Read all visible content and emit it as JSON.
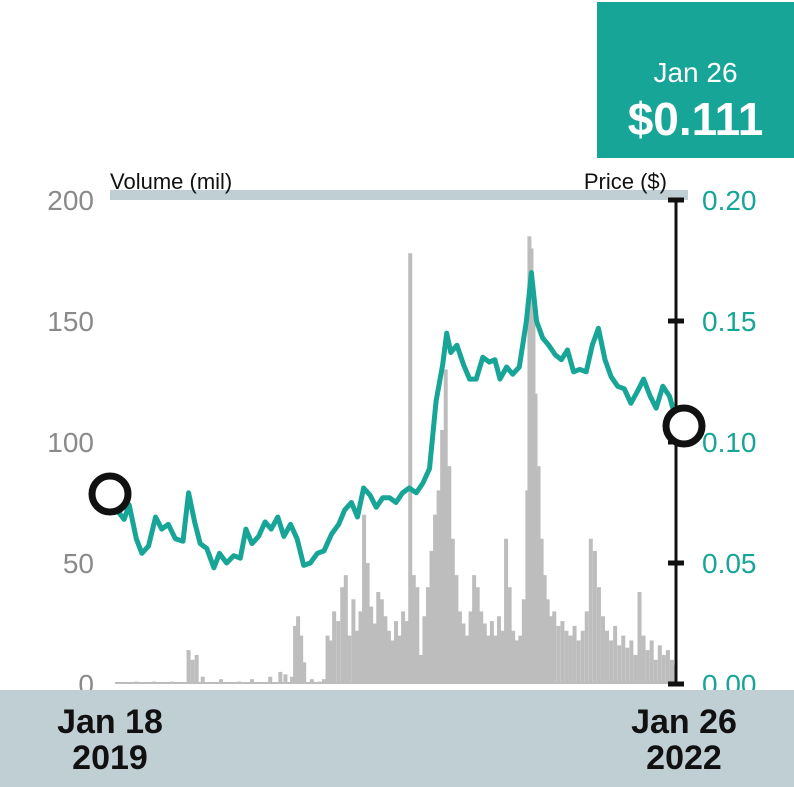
{
  "badge": {
    "date": "Jan 26",
    "price": "$0.111"
  },
  "footer": {
    "start_day": "Jan 18",
    "start_year": "2019",
    "end_day": "Jan 26",
    "end_year": "2022"
  },
  "colors": {
    "price_line": "#17a597",
    "volume_bar": "#bdbdbd",
    "footer_band": "#c0cfd4",
    "axis": "#111111"
  },
  "chart_data": {
    "type": "line",
    "left_axis_label": "Volume (mil)",
    "right_axis_label": "Price ($)",
    "left_ticks": [
      "200",
      "150",
      "100",
      "50",
      "0"
    ],
    "right_ticks": [
      "0.20",
      "0.15",
      "0.10",
      "0.05",
      "0.00"
    ],
    "volume_ylim": [
      0,
      200
    ],
    "price_ylim": [
      0,
      0.2
    ],
    "start_date": "2019-01-18",
    "end_date": "2022-01-26",
    "price_series": {
      "name": "Price ($)",
      "points": [
        [
          "2019-01-18",
          0.078
        ],
        [
          "2019-01-25",
          0.071
        ],
        [
          "2019-02-05",
          0.068
        ],
        [
          "2019-02-15",
          0.074
        ],
        [
          "2019-03-01",
          0.06
        ],
        [
          "2019-03-12",
          0.054
        ],
        [
          "2019-03-25",
          0.057
        ],
        [
          "2019-04-08",
          0.069
        ],
        [
          "2019-04-20",
          0.064
        ],
        [
          "2019-05-03",
          0.066
        ],
        [
          "2019-05-17",
          0.06
        ],
        [
          "2019-06-01",
          0.059
        ],
        [
          "2019-06-12",
          0.079
        ],
        [
          "2019-06-24",
          0.067
        ],
        [
          "2019-07-05",
          0.058
        ],
        [
          "2019-07-18",
          0.056
        ],
        [
          "2019-08-01",
          0.048
        ],
        [
          "2019-08-12",
          0.054
        ],
        [
          "2019-08-26",
          0.05
        ],
        [
          "2019-09-09",
          0.053
        ],
        [
          "2019-09-22",
          0.052
        ],
        [
          "2019-10-03",
          0.064
        ],
        [
          "2019-10-15",
          0.058
        ],
        [
          "2019-10-28",
          0.061
        ],
        [
          "2019-11-10",
          0.067
        ],
        [
          "2019-11-22",
          0.064
        ],
        [
          "2019-12-05",
          0.069
        ],
        [
          "2019-12-17",
          0.061
        ],
        [
          "2019-12-30",
          0.066
        ],
        [
          "2020-01-12",
          0.06
        ],
        [
          "2020-01-25",
          0.049
        ],
        [
          "2020-02-07",
          0.05
        ],
        [
          "2020-02-21",
          0.054
        ],
        [
          "2020-03-05",
          0.055
        ],
        [
          "2020-03-20",
          0.062
        ],
        [
          "2020-04-03",
          0.066
        ],
        [
          "2020-04-15",
          0.072
        ],
        [
          "2020-04-28",
          0.075
        ],
        [
          "2020-05-10",
          0.069
        ],
        [
          "2020-05-22",
          0.081
        ],
        [
          "2020-06-04",
          0.078
        ],
        [
          "2020-06-16",
          0.073
        ],
        [
          "2020-06-29",
          0.077
        ],
        [
          "2020-07-12",
          0.077
        ],
        [
          "2020-07-25",
          0.075
        ],
        [
          "2020-08-07",
          0.079
        ],
        [
          "2020-08-20",
          0.081
        ],
        [
          "2020-09-03",
          0.079
        ],
        [
          "2020-09-16",
          0.083
        ],
        [
          "2020-09-29",
          0.089
        ],
        [
          "2020-10-12",
          0.117
        ],
        [
          "2020-10-25",
          0.132
        ],
        [
          "2020-11-02",
          0.145
        ],
        [
          "2020-11-10",
          0.137
        ],
        [
          "2020-11-22",
          0.14
        ],
        [
          "2020-12-05",
          0.132
        ],
        [
          "2020-12-17",
          0.126
        ],
        [
          "2020-12-30",
          0.126
        ],
        [
          "2021-01-12",
          0.135
        ],
        [
          "2021-01-25",
          0.133
        ],
        [
          "2021-02-05",
          0.134
        ],
        [
          "2021-02-15",
          0.126
        ],
        [
          "2021-02-28",
          0.131
        ],
        [
          "2021-03-12",
          0.128
        ],
        [
          "2021-03-25",
          0.131
        ],
        [
          "2021-04-08",
          0.15
        ],
        [
          "2021-04-18",
          0.17
        ],
        [
          "2021-04-28",
          0.15
        ],
        [
          "2021-05-10",
          0.143
        ],
        [
          "2021-05-22",
          0.14
        ],
        [
          "2021-06-04",
          0.136
        ],
        [
          "2021-06-16",
          0.134
        ],
        [
          "2021-06-28",
          0.138
        ],
        [
          "2021-07-10",
          0.129
        ],
        [
          "2021-07-22",
          0.13
        ],
        [
          "2021-08-04",
          0.129
        ],
        [
          "2021-08-16",
          0.14
        ],
        [
          "2021-08-28",
          0.147
        ],
        [
          "2021-09-10",
          0.134
        ],
        [
          "2021-09-22",
          0.127
        ],
        [
          "2021-10-05",
          0.123
        ],
        [
          "2021-10-18",
          0.122
        ],
        [
          "2021-10-31",
          0.116
        ],
        [
          "2021-11-13",
          0.121
        ],
        [
          "2021-11-25",
          0.126
        ],
        [
          "2021-12-08",
          0.119
        ],
        [
          "2021-12-20",
          0.114
        ],
        [
          "2022-01-02",
          0.123
        ],
        [
          "2022-01-15",
          0.119
        ],
        [
          "2022-01-26",
          0.111
        ]
      ]
    },
    "volume_series": {
      "name": "Volume (mil)",
      "points": [
        [
          "2019-03-01",
          1
        ],
        [
          "2019-04-05",
          1
        ],
        [
          "2019-05-10",
          1
        ],
        [
          "2019-06-12",
          14
        ],
        [
          "2019-06-20",
          10
        ],
        [
          "2019-06-28",
          12
        ],
        [
          "2019-07-10",
          3
        ],
        [
          "2019-08-15",
          2
        ],
        [
          "2019-09-20",
          1
        ],
        [
          "2019-10-15",
          2
        ],
        [
          "2019-11-20",
          3
        ],
        [
          "2019-12-10",
          5
        ],
        [
          "2019-12-20",
          4
        ],
        [
          "2020-01-02",
          3
        ],
        [
          "2020-01-08",
          24
        ],
        [
          "2020-01-14",
          28
        ],
        [
          "2020-01-20",
          20
        ],
        [
          "2020-01-26",
          9
        ],
        [
          "2020-02-10",
          2
        ],
        [
          "2020-02-25",
          1
        ],
        [
          "2020-03-05",
          2
        ],
        [
          "2020-03-12",
          20
        ],
        [
          "2020-03-18",
          18
        ],
        [
          "2020-03-25",
          30
        ],
        [
          "2020-04-02",
          26
        ],
        [
          "2020-04-10",
          40
        ],
        [
          "2020-04-17",
          45
        ],
        [
          "2020-04-24",
          20
        ],
        [
          "2020-05-02",
          35
        ],
        [
          "2020-05-09",
          22
        ],
        [
          "2020-05-16",
          30
        ],
        [
          "2020-05-23",
          70
        ],
        [
          "2020-05-30",
          50
        ],
        [
          "2020-06-06",
          32
        ],
        [
          "2020-06-13",
          25
        ],
        [
          "2020-06-20",
          38
        ],
        [
          "2020-06-27",
          35
        ],
        [
          "2020-07-04",
          28
        ],
        [
          "2020-07-11",
          22
        ],
        [
          "2020-07-18",
          18
        ],
        [
          "2020-07-25",
          26
        ],
        [
          "2020-08-01",
          20
        ],
        [
          "2020-08-08",
          30
        ],
        [
          "2020-08-15",
          26
        ],
        [
          "2020-08-22",
          178
        ],
        [
          "2020-08-29",
          45
        ],
        [
          "2020-09-05",
          40
        ],
        [
          "2020-09-12",
          12
        ],
        [
          "2020-09-19",
          28
        ],
        [
          "2020-09-26",
          40
        ],
        [
          "2020-10-03",
          55
        ],
        [
          "2020-10-10",
          70
        ],
        [
          "2020-10-17",
          80
        ],
        [
          "2020-10-24",
          105
        ],
        [
          "2020-10-31",
          130
        ],
        [
          "2020-11-07",
          90
        ],
        [
          "2020-11-14",
          60
        ],
        [
          "2020-11-21",
          45
        ],
        [
          "2020-11-28",
          30
        ],
        [
          "2020-12-05",
          25
        ],
        [
          "2020-12-12",
          20
        ],
        [
          "2020-12-19",
          30
        ],
        [
          "2020-12-26",
          45
        ],
        [
          "2021-01-02",
          40
        ],
        [
          "2021-01-09",
          30
        ],
        [
          "2021-01-16",
          25
        ],
        [
          "2021-01-23",
          20
        ],
        [
          "2021-01-30",
          26
        ],
        [
          "2021-02-06",
          20
        ],
        [
          "2021-02-13",
          28
        ],
        [
          "2021-02-20",
          22
        ],
        [
          "2021-02-27",
          60
        ],
        [
          "2021-03-06",
          40
        ],
        [
          "2021-03-13",
          22
        ],
        [
          "2021-03-20",
          18
        ],
        [
          "2021-03-27",
          20
        ],
        [
          "2021-04-03",
          35
        ],
        [
          "2021-04-10",
          80
        ],
        [
          "2021-04-14",
          185
        ],
        [
          "2021-04-18",
          180
        ],
        [
          "2021-04-22",
          160
        ],
        [
          "2021-04-26",
          120
        ],
        [
          "2021-05-02",
          90
        ],
        [
          "2021-05-08",
          60
        ],
        [
          "2021-05-14",
          45
        ],
        [
          "2021-05-20",
          35
        ],
        [
          "2021-05-26",
          28
        ],
        [
          "2021-06-02",
          30
        ],
        [
          "2021-06-10",
          24
        ],
        [
          "2021-06-18",
          26
        ],
        [
          "2021-06-26",
          22
        ],
        [
          "2021-07-04",
          20
        ],
        [
          "2021-07-12",
          24
        ],
        [
          "2021-07-20",
          18
        ],
        [
          "2021-07-28",
          22
        ],
        [
          "2021-08-05",
          30
        ],
        [
          "2021-08-13",
          60
        ],
        [
          "2021-08-21",
          55
        ],
        [
          "2021-08-29",
          40
        ],
        [
          "2021-09-06",
          28
        ],
        [
          "2021-09-14",
          22
        ],
        [
          "2021-09-22",
          18
        ],
        [
          "2021-09-30",
          24
        ],
        [
          "2021-10-08",
          16
        ],
        [
          "2021-10-16",
          20
        ],
        [
          "2021-10-24",
          15
        ],
        [
          "2021-11-01",
          18
        ],
        [
          "2021-11-09",
          12
        ],
        [
          "2021-11-17",
          38
        ],
        [
          "2021-11-25",
          20
        ],
        [
          "2021-12-03",
          14
        ],
        [
          "2021-12-11",
          18
        ],
        [
          "2021-12-19",
          10
        ],
        [
          "2021-12-27",
          16
        ],
        [
          "2022-01-04",
          12
        ],
        [
          "2022-01-12",
          14
        ],
        [
          "2022-01-20",
          10
        ],
        [
          "2022-01-26",
          8
        ]
      ]
    },
    "grid": false,
    "legend": "none"
  }
}
